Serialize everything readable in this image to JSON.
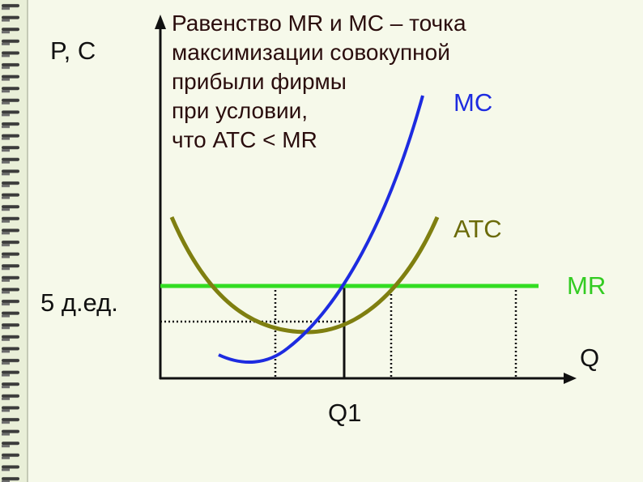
{
  "title_lines": [
    "Равенство MR и MC – точка",
    "максимизации совокупной",
    "прибыли фирмы",
    "при условии,",
    "что ATC < MR"
  ],
  "axis_labels": {
    "y": "P, C",
    "x": "Q",
    "price": "5 д.ед.",
    "quantity": "Q1"
  },
  "curve_labels": {
    "mc": "MC",
    "atc": "ATC",
    "mr": "MR"
  }
}
